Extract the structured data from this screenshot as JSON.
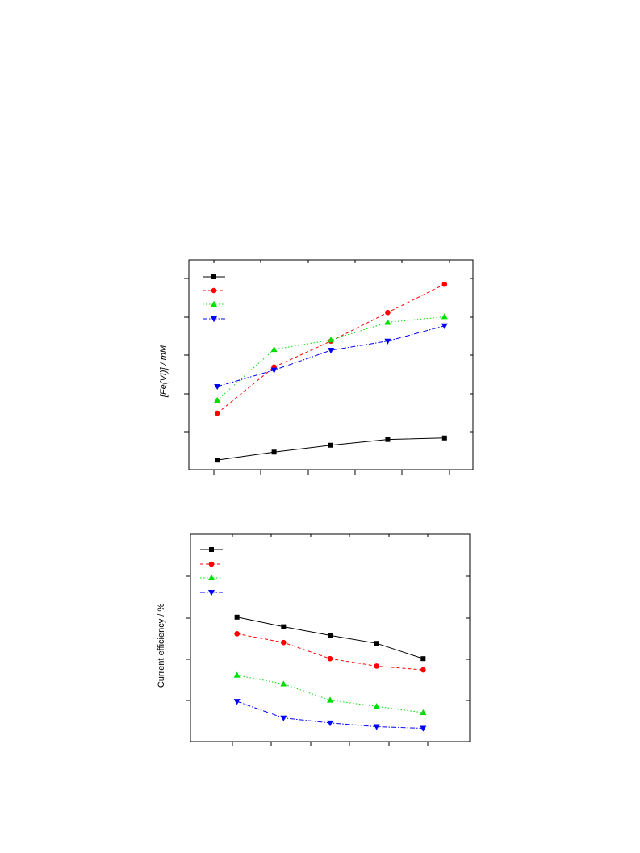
{
  "chart_data": [
    {
      "type": "line",
      "title": "",
      "xlabel": "",
      "ylabel": "[Fe(VI)] / mM",
      "x": [
        1,
        2,
        3,
        4,
        5
      ],
      "ylim": [
        0,
        5.5
      ],
      "xlim": [
        0.5,
        5.5
      ],
      "grid": false,
      "legend": "top-left",
      "series": [
        {
          "values": [
            0.25,
            0.46,
            0.64,
            0.79,
            0.83
          ],
          "color": "#000000",
          "marker": "square",
          "dash": "solid"
        },
        {
          "values": [
            1.48,
            2.69,
            3.37,
            4.12,
            4.86
          ],
          "color": "#ff0000",
          "marker": "circle",
          "dash": "dashed"
        },
        {
          "values": [
            1.82,
            3.15,
            3.4,
            3.86,
            4.01
          ],
          "color": "#00dd00",
          "marker": "triangle-up",
          "dash": "dotted"
        },
        {
          "values": [
            2.18,
            2.61,
            3.13,
            3.37,
            3.77
          ],
          "color": "#0000ff",
          "marker": "triangle-down",
          "dash": "dashdot"
        }
      ]
    },
    {
      "type": "line",
      "title": "",
      "xlabel": "",
      "ylabel": "Current efficiency / %",
      "x": [
        1,
        2,
        3,
        4,
        5
      ],
      "ylim": [
        0,
        5
      ],
      "xlim": [
        0,
        6
      ],
      "grid": false,
      "legend": "top-left",
      "series": [
        {
          "values": [
            3.0,
            2.77,
            2.56,
            2.37,
            2.0
          ],
          "color": "#000000",
          "marker": "square",
          "dash": "solid"
        },
        {
          "values": [
            2.6,
            2.39,
            2.0,
            1.82,
            1.73
          ],
          "color": "#ff0000",
          "marker": "circle",
          "dash": "dashed"
        },
        {
          "values": [
            1.6,
            1.39,
            1.0,
            0.85,
            0.7
          ],
          "color": "#00dd00",
          "marker": "triangle-up",
          "dash": "dotted"
        },
        {
          "values": [
            0.97,
            0.57,
            0.45,
            0.36,
            0.32
          ],
          "color": "#0000ff",
          "marker": "triangle-down",
          "dash": "dashdot"
        }
      ]
    }
  ]
}
